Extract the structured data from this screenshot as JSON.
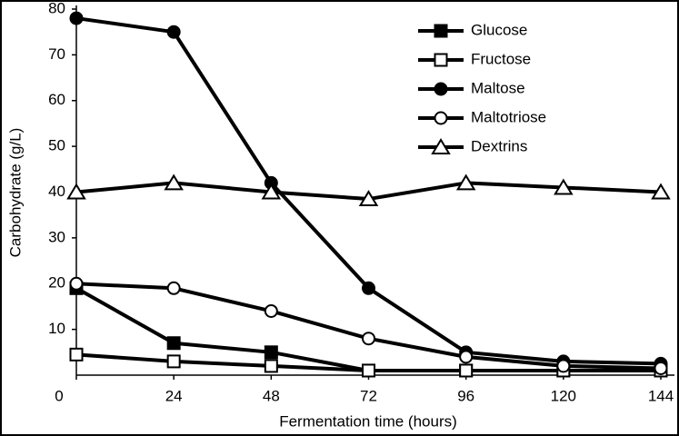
{
  "chart_data": {
    "type": "line",
    "x_label": "Fermentation time (hours)",
    "y_label": "Carbohydrate (g/L)",
    "x": [
      0,
      24,
      48,
      72,
      96,
      120,
      144
    ],
    "xlim": [
      0,
      144
    ],
    "xticks": [
      0,
      24,
      48,
      72,
      96,
      120,
      144
    ],
    "ylim": [
      0,
      80
    ],
    "yticks": [
      10,
      20,
      30,
      40,
      50,
      60,
      70,
      80
    ],
    "legend": "top-right",
    "series": [
      {
        "name": "Glucose",
        "color": "#000000",
        "marker": "square",
        "marker_fill": "#000000",
        "values": [
          19,
          7,
          5,
          1,
          1,
          1,
          1
        ]
      },
      {
        "name": "Fructose",
        "color": "#000000",
        "marker": "square",
        "marker_fill": "#ffffff",
        "values": [
          4.5,
          3,
          2,
          1,
          1,
          1,
          1
        ]
      },
      {
        "name": "Maltose",
        "color": "#000000",
        "marker": "circle",
        "marker_fill": "#000000",
        "values": [
          78,
          75,
          42,
          19,
          5,
          3,
          2.5
        ]
      },
      {
        "name": "Maltotriose",
        "color": "#000000",
        "marker": "circle",
        "marker_fill": "#ffffff",
        "values": [
          20,
          19,
          14,
          8,
          4,
          2,
          1.5
        ]
      },
      {
        "name": "Dextrins",
        "color": "#000000",
        "marker": "triangle",
        "marker_fill": "#ffffff",
        "values": [
          40,
          42,
          40,
          38.5,
          42,
          41,
          40
        ]
      }
    ]
  }
}
